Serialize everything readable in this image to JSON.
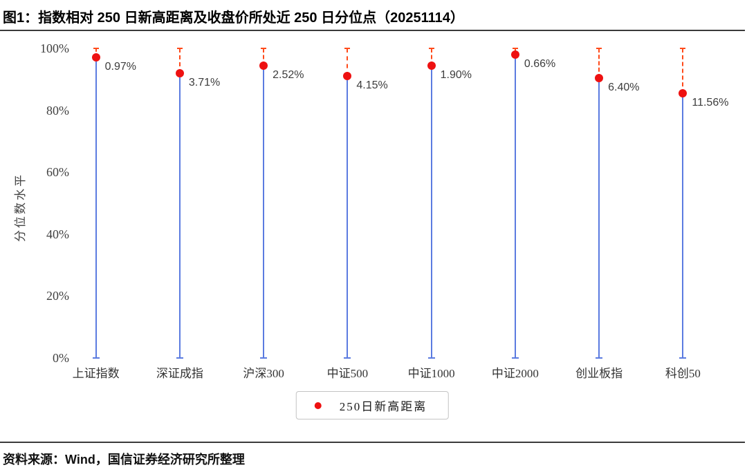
{
  "title": "图1：指数相对 250 日新高距离及收盘价所处近 250 日分位点（20251114）",
  "source_note": "资料来源：Wind，国信证券经济研究所整理",
  "legend": {
    "label": "250日新高距离"
  },
  "colors": {
    "stem_blue": "#5b7be0",
    "dash_orange_red": "#ff4a1a",
    "dot_red": "#ee1111",
    "rule_dark": "#3a3a3a",
    "tick_text": "#3f3f3f",
    "label_text": "#3c3c3c"
  },
  "chart_data": {
    "type": "scatter",
    "subtype": "stem-lollipop-with-dashed-range-to-100",
    "title": "图1：指数相对 250 日新高距离及收盘价所处近 250 日分位点（20251114）",
    "date": "20251114",
    "categories": [
      "上证指数",
      "深证成指",
      "沪深300",
      "中证500",
      "中证1000",
      "中证2000",
      "创业板指",
      "科创50"
    ],
    "series": [
      {
        "name": "收盘价所处近250日分位点",
        "unit": "%",
        "values": [
          97,
          92,
          94.5,
          91,
          94.5,
          98,
          90.5,
          85.5
        ],
        "marker": "red-dot",
        "note": "solid blue stem rises from 0% to the red dot; red dashed segment continues from the dot up to 100% with a cap"
      },
      {
        "name": "250日新高距离",
        "unit": "%",
        "values": [
          0.97,
          3.71,
          2.52,
          4.15,
          1.9,
          0.66,
          6.4,
          11.56
        ],
        "labels": [
          "0.97%",
          "3.71%",
          "2.52%",
          "4.15%",
          "1.90%",
          "0.66%",
          "6.40%",
          "11.56%"
        ]
      }
    ],
    "xlabel": "",
    "ylabel": "分位数水平",
    "ylim": [
      0,
      100
    ],
    "yticks": [
      "0%",
      "20%",
      "40%",
      "60%",
      "80%",
      "100%"
    ],
    "grid": false,
    "legend_position": "bottom-center",
    "legend_label": "250日新高距离"
  }
}
